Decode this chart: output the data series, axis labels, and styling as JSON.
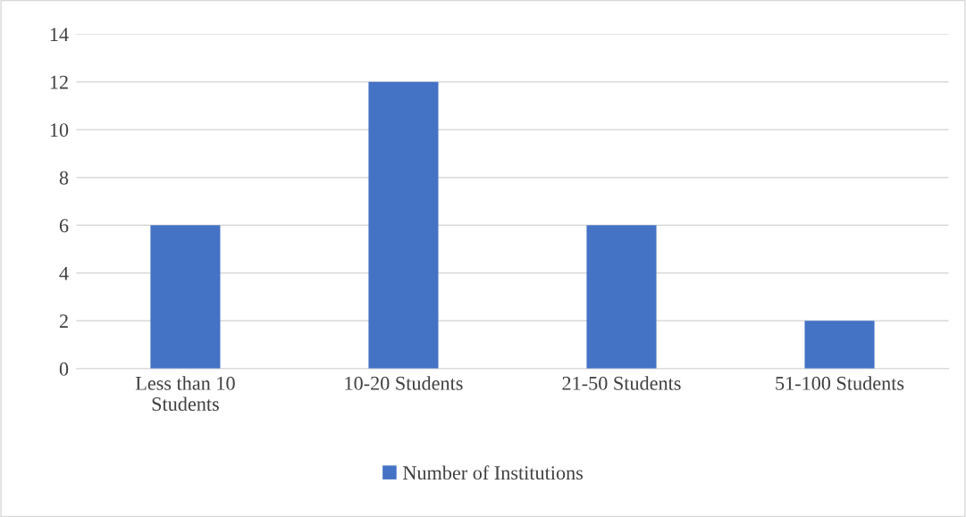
{
  "chart_data": {
    "type": "bar",
    "categories": [
      "Less than 10\nStudents",
      "10-20 Students",
      "21-50 Students",
      "51-100 Students"
    ],
    "series": [
      {
        "name": "Number of Institutions",
        "color": "#4472c4",
        "values": [
          6,
          12,
          6,
          2
        ]
      }
    ],
    "ylim": [
      0,
      14
    ],
    "yticks": [
      0,
      2,
      4,
      6,
      8,
      10,
      12,
      14
    ],
    "grid": "y",
    "legend": "bottom"
  }
}
